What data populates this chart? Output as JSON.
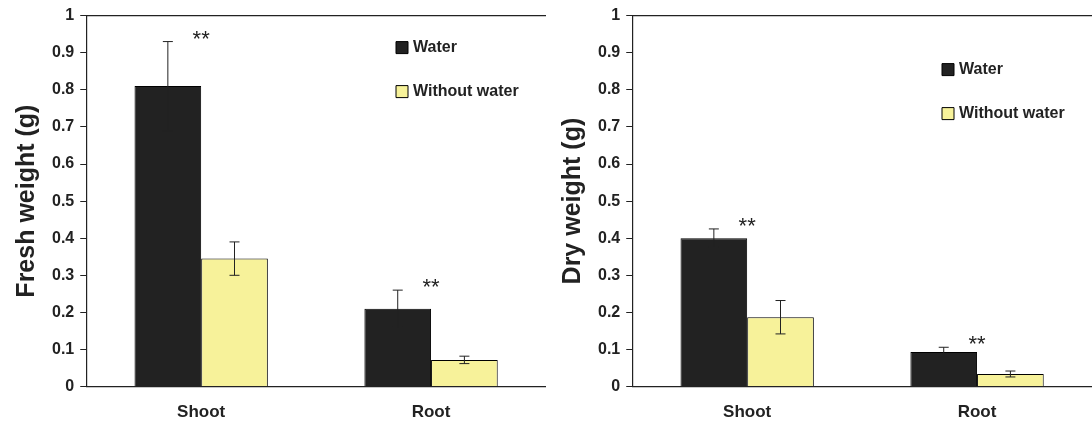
{
  "chart_data": [
    {
      "type": "bar",
      "ylabel": "Fresh weight (g)",
      "categories": [
        "Shoot",
        "Root"
      ],
      "series": [
        {
          "name": "Water",
          "color": "#222222",
          "values": [
            0.81,
            0.21
          ],
          "errors": [
            0.12,
            0.05
          ]
        },
        {
          "name": "Without water",
          "color": "#f7f29a",
          "values": [
            0.345,
            0.072
          ],
          "errors": [
            0.045,
            0.01
          ]
        }
      ],
      "ylim": [
        0,
        1
      ],
      "yticks": [
        0,
        0.1,
        0.2,
        0.3,
        0.4,
        0.5,
        0.6,
        0.7,
        0.8,
        0.9,
        1
      ],
      "legend": "top right",
      "annotations": [
        "**",
        "**"
      ]
    },
    {
      "type": "bar",
      "ylabel": "Dry weight (g)",
      "categories": [
        "Shoot",
        "Root"
      ],
      "series": [
        {
          "name": "Water",
          "color": "#222222",
          "values": [
            0.4,
            0.093
          ],
          "errors": [
            0.025,
            0.013
          ]
        },
        {
          "name": "Without water",
          "color": "#f7f29a",
          "values": [
            0.187,
            0.034
          ],
          "errors": [
            0.045,
            0.008
          ]
        }
      ],
      "ylim": [
        0,
        1
      ],
      "yticks": [
        0,
        0.1,
        0.2,
        0.3,
        0.4,
        0.5,
        0.6,
        0.7,
        0.8,
        0.9,
        1
      ],
      "legend": "top right",
      "annotations": [
        "**",
        "**"
      ]
    }
  ]
}
